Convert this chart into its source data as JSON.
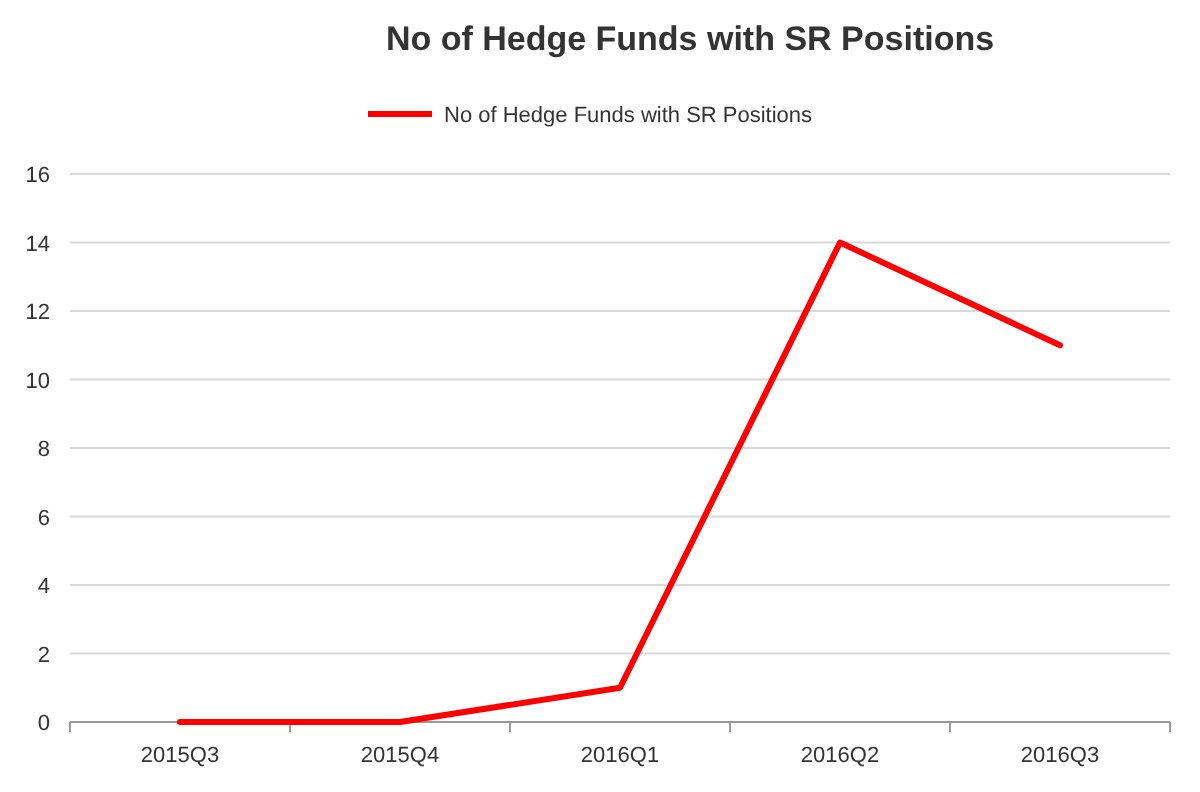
{
  "chart_data": {
    "type": "line",
    "title": "No of Hedge Funds with SR Positions",
    "categories": [
      "2015Q3",
      "2015Q4",
      "2016Q1",
      "2016Q2",
      "2016Q3"
    ],
    "series": [
      {
        "name": "No of Hedge Funds with SR Positions",
        "color": "#ff0000",
        "values": [
          0,
          0,
          1,
          14,
          11
        ]
      }
    ],
    "ylim": [
      0,
      16
    ],
    "yticks": [
      0,
      2,
      4,
      6,
      8,
      10,
      12,
      14,
      16
    ],
    "grid": "y",
    "legend": "top",
    "marker": "none",
    "line_style": "solid"
  }
}
